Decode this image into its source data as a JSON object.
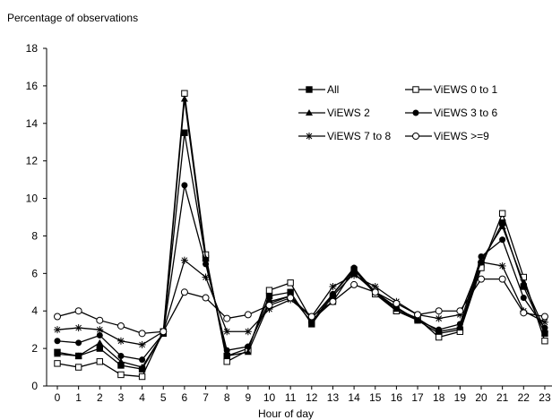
{
  "chart_data": {
    "type": "line",
    "ylabel": "Percentage of observations",
    "xlabel": "Hour of day",
    "ylim": [
      0,
      18
    ],
    "yticks": [
      0,
      2,
      4,
      6,
      8,
      10,
      12,
      14,
      16,
      18
    ],
    "x": [
      0,
      1,
      2,
      3,
      4,
      5,
      6,
      7,
      8,
      9,
      10,
      11,
      12,
      13,
      14,
      15,
      16,
      17,
      18,
      19,
      20,
      21,
      22,
      23
    ],
    "grid": false,
    "legend_position": "top-right",
    "series": [
      {
        "name": "All",
        "marker": "filled-square",
        "values": [
          1.8,
          1.6,
          2.0,
          1.1,
          0.9,
          2.8,
          13.5,
          6.8,
          1.6,
          2.0,
          4.8,
          5.0,
          3.3,
          4.8,
          6.0,
          5.0,
          4.0,
          3.5,
          2.8,
          3.0,
          6.5,
          8.7,
          5.3,
          2.8
        ]
      },
      {
        "name": "ViEWS 0 to 1",
        "marker": "open-square",
        "values": [
          1.2,
          1.0,
          1.3,
          0.6,
          0.5,
          2.9,
          15.6,
          7.0,
          1.3,
          1.9,
          5.1,
          5.5,
          3.5,
          4.5,
          6.2,
          4.9,
          4.0,
          3.6,
          2.6,
          2.9,
          6.3,
          9.2,
          5.8,
          2.4
        ]
      },
      {
        "name": "ViEWS 2",
        "marker": "filled-triangle",
        "values": [
          1.7,
          1.6,
          2.3,
          1.3,
          1.0,
          2.8,
          15.3,
          6.8,
          1.6,
          1.8,
          4.4,
          4.8,
          3.6,
          4.9,
          6.2,
          5.0,
          4.1,
          3.6,
          2.9,
          3.1,
          6.7,
          8.5,
          5.5,
          3.0
        ]
      },
      {
        "name": "ViEWS 3 to 6",
        "marker": "filled-circle",
        "values": [
          2.4,
          2.3,
          2.7,
          1.6,
          1.4,
          2.8,
          10.7,
          6.5,
          1.9,
          2.1,
          4.5,
          4.8,
          3.4,
          4.9,
          6.3,
          5.0,
          4.2,
          3.5,
          3.0,
          3.3,
          6.9,
          7.8,
          4.7,
          3.1
        ]
      },
      {
        "name": "ViEWS 7 to 8",
        "marker": "star",
        "values": [
          3.0,
          3.1,
          3.0,
          2.4,
          2.2,
          2.9,
          6.7,
          5.8,
          2.9,
          2.9,
          4.1,
          4.6,
          3.7,
          5.3,
          5.9,
          5.3,
          4.5,
          3.8,
          3.6,
          3.8,
          6.6,
          6.4,
          4.0,
          3.4
        ]
      },
      {
        "name": "ViEWS >=9",
        "marker": "open-circle",
        "values": [
          3.7,
          4.0,
          3.5,
          3.2,
          2.8,
          2.9,
          5.0,
          4.7,
          3.6,
          3.8,
          4.3,
          4.7,
          3.7,
          4.5,
          5.4,
          5.0,
          4.4,
          3.8,
          4.0,
          4.0,
          5.7,
          5.7,
          3.9,
          3.7
        ]
      }
    ]
  }
}
